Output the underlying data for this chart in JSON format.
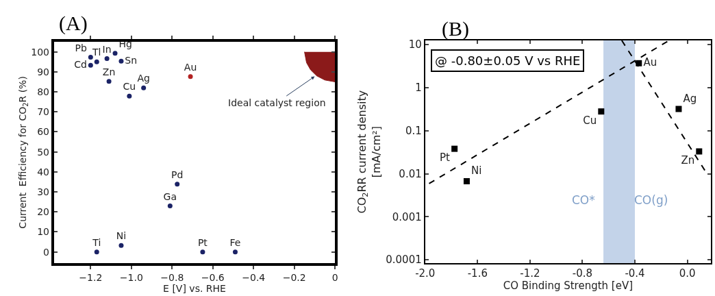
{
  "chart_data": [
    {
      "type": "scatter",
      "title": "(A)",
      "xlabel": "E [V] vs. RHE",
      "ylabel": "Current  Efficiency for CO$_{2}$R (%)",
      "xlim": [
        -1.38,
        0
      ],
      "xticks": [
        {
          "value": -1.2,
          "label": "−1.2"
        },
        {
          "value": -1.0,
          "label": "−1.0"
        },
        {
          "value": -0.8,
          "label": "−0.8"
        },
        {
          "value": -0.6,
          "label": "−0.6"
        },
        {
          "value": -0.4,
          "label": "−0.4"
        },
        {
          "value": -0.2,
          "label": "−0.2"
        },
        0
      ],
      "ylim": [
        -5.5,
        105
      ],
      "yticks": [
        0,
        10,
        20,
        30,
        40,
        50,
        60,
        70,
        80,
        90,
        100
      ],
      "grid": false,
      "series": [
        {
          "marker": "circle",
          "x": [
            -1.2,
            -1.17,
            -1.12,
            -1.08,
            -1.05,
            -1.2,
            -1.11,
            -1.01,
            -0.94,
            -0.71,
            -0.775,
            -0.81,
            -1.17,
            -1.05,
            -0.65,
            -0.49
          ],
          "values": [
            97.3,
            95,
            96.6,
            99.3,
            95.3,
            93.3,
            85.2,
            77.9,
            82,
            87.6,
            33.9,
            23,
            0,
            3.2,
            0,
            0
          ],
          "value_labels": [
            "Pb",
            "Tl",
            "In",
            "Hg",
            "Sn",
            "Cd",
            "Zn",
            "Cu",
            "Ag",
            "Au",
            "Pd",
            "Ga",
            "Ti",
            "Ni",
            "Pt",
            "Fe"
          ],
          "color": "#1b2366",
          "colors": [
            "#1b2366",
            "#1b2366",
            "#1b2366",
            "#1b2366",
            "#1b2366",
            "#1b2366",
            "#1b2366",
            "#1b2366",
            "#1b2366",
            "#b22222",
            "#1b2366",
            "#1b2366",
            "#1b2366",
            "#1b2366",
            "#1b2366",
            "#1b2366"
          ]
        },
        {
          "type": "area",
          "marker": "none",
          "x": [
            -0.15,
            -0.14,
            -0.12,
            -0.09,
            -0.05,
            0,
            0
          ],
          "values": [
            100,
            94.6,
            91,
            88,
            85.9,
            85,
            100
          ],
          "color": "#8b1a1a"
        }
      ],
      "annotations": [
        {
          "text": "Ideal catalyst region",
          "x": -0.1,
          "y": 87.7
        }
      ]
    },
    {
      "type": "scatter",
      "title": "(B)",
      "xlabel": "CO Binding Strength [eV]",
      "ylabel": "CO$_{2}$RR current density\n[mA/cm²]",
      "log": "y",
      "xlim": [
        -2.0,
        0.18
      ],
      "xticks": [
        {
          "value": -2.0,
          "label": "-2.0"
        },
        {
          "value": -1.6,
          "label": "-1.6"
        },
        {
          "value": -1.2,
          "label": "-1.2"
        },
        {
          "value": -0.8,
          "label": "-0.8"
        },
        {
          "value": -0.4,
          "label": "-0.4"
        },
        {
          "value": 0.0,
          "label": "0.0"
        }
      ],
      "ylim": [
        8.3e-05,
        12.5
      ],
      "yticks": [
        0.0001,
        0.001,
        0.01,
        0.1,
        1,
        10
      ],
      "grid": false,
      "series": [
        {
          "marker": "square",
          "x": [
            -1.776,
            -1.683,
            -0.657,
            -0.37,
            -0.066,
            0.09
          ],
          "values": [
            0.038,
            0.0067,
            0.28,
            3.7,
            0.32,
            0.033
          ],
          "value_labels": [
            "Pt",
            "Ni",
            "Cu",
            "Au",
            "Ag",
            "Zn"
          ],
          "color": "#000000"
        },
        {
          "type": "line",
          "marker": "none",
          "x": [
            -1.97,
            -0.14
          ],
          "values": [
            0.0059,
            12.5
          ],
          "color": "#000000",
          "line_style": "dashed"
        },
        {
          "type": "line",
          "marker": "none",
          "x": [
            -0.5,
            0.15
          ],
          "values": [
            12.5,
            0.01
          ],
          "color": "#000000",
          "line_style": "dashed"
        }
      ],
      "bands": [
        {
          "axis": "x",
          "from": -0.64,
          "to": -0.4,
          "color": "#a9c0e0"
        }
      ],
      "annotations": [
        "@ -0.80±0.05 V vs RHE",
        "CO*",
        "CO(g)"
      ]
    }
  ]
}
